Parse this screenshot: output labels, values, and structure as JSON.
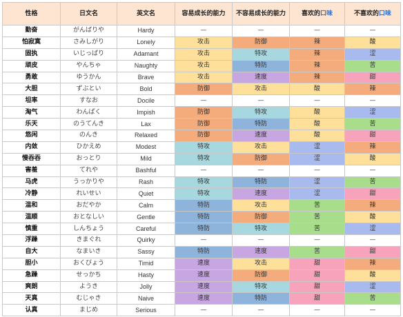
{
  "headers": {
    "nature": "性格",
    "japanese": "日文名",
    "english": "英文名",
    "easy_stat": "容易成长的能力",
    "hard_stat": "不容易成长的能力",
    "liked_flavor_prefix": "喜欢的",
    "liked_flavor_highlight": "口味",
    "disliked_flavor_prefix": "不喜欢的",
    "disliked_flavor_highlight": "口味"
  },
  "colors": {
    "header_bg": "#fde5d2",
    "attack": "#ffe09a",
    "defense": "#f4ac7c",
    "sp_attack": "#a7d8df",
    "sp_defense": "#8fb4dc",
    "speed": "#c8a6e2",
    "spicy": "#f4ac7c",
    "dry": "#a9bbee",
    "sweet": "#f6a3bb",
    "bitter": "#a8dd8c",
    "sour": "#ffe09a",
    "neutral": "#ffffff",
    "highlight_text": "#2d6fd1"
  },
  "rows": [
    {
      "nature": "勤奋",
      "japanese": "がんばりや",
      "english": "Hardy",
      "easy": "—",
      "hard": "—",
      "like": "—",
      "dislike": "—"
    },
    {
      "nature": "怕寂寞",
      "japanese": "さみしがり",
      "english": "Lonely",
      "easy": "攻击",
      "hard": "防御",
      "like": "辣",
      "dislike": "酸"
    },
    {
      "nature": "固执",
      "japanese": "いじっぱり",
      "english": "Adamant",
      "easy": "攻击",
      "hard": "特攻",
      "like": "辣",
      "dislike": "涩"
    },
    {
      "nature": "顽皮",
      "japanese": "やんちゃ",
      "english": "Naughty",
      "easy": "攻击",
      "hard": "特防",
      "like": "辣",
      "dislike": "苦"
    },
    {
      "nature": "勇敢",
      "japanese": "ゆうかん",
      "english": "Brave",
      "easy": "攻击",
      "hard": "速度",
      "like": "辣",
      "dislike": "甜"
    },
    {
      "nature": "大胆",
      "japanese": "ずぶとい",
      "english": "Bold",
      "easy": "防御",
      "hard": "攻击",
      "like": "酸",
      "dislike": "辣"
    },
    {
      "nature": "坦率",
      "japanese": "すなお",
      "english": "Docile",
      "easy": "—",
      "hard": "—",
      "like": "—",
      "dislike": "—"
    },
    {
      "nature": "淘气",
      "japanese": "わんぱく",
      "english": "Impish",
      "easy": "防御",
      "hard": "特攻",
      "like": "酸",
      "dislike": "涩"
    },
    {
      "nature": "乐天",
      "japanese": "のうてんき",
      "english": "Lax",
      "easy": "防御",
      "hard": "特防",
      "like": "酸",
      "dislike": "苦"
    },
    {
      "nature": "悠闲",
      "japanese": "のんき",
      "english": "Relaxed",
      "easy": "防御",
      "hard": "速度",
      "like": "酸",
      "dislike": "甜"
    },
    {
      "nature": "内敛",
      "japanese": "ひかえめ",
      "english": "Modest",
      "easy": "特攻",
      "hard": "攻击",
      "like": "涩",
      "dislike": "辣"
    },
    {
      "nature": "慢吞吞",
      "japanese": "おっとり",
      "english": "Mild",
      "easy": "特攻",
      "hard": "防御",
      "like": "涩",
      "dislike": "酸"
    },
    {
      "nature": "害羞",
      "japanese": "てれや",
      "english": "Bashful",
      "easy": "—",
      "hard": "—",
      "like": "—",
      "dislike": "—"
    },
    {
      "nature": "马虎",
      "japanese": "うっかりや",
      "english": "Rash",
      "easy": "特攻",
      "hard": "特防",
      "like": "涩",
      "dislike": "苦"
    },
    {
      "nature": "冷静",
      "japanese": "れいせい",
      "english": "Quiet",
      "easy": "特攻",
      "hard": "速度",
      "like": "涩",
      "dislike": "甜"
    },
    {
      "nature": "温和",
      "japanese": "おだやか",
      "english": "Calm",
      "easy": "特防",
      "hard": "攻击",
      "like": "苦",
      "dislike": "辣"
    },
    {
      "nature": "温顺",
      "japanese": "おとなしい",
      "english": "Gentle",
      "easy": "特防",
      "hard": "防御",
      "like": "苦",
      "dislike": "酸"
    },
    {
      "nature": "慎重",
      "japanese": "しんちょう",
      "english": "Careful",
      "easy": "特防",
      "hard": "特攻",
      "like": "苦",
      "dislike": "涩"
    },
    {
      "nature": "浮躁",
      "japanese": "きまぐれ",
      "english": "Quirky",
      "easy": "—",
      "hard": "—",
      "like": "—",
      "dislike": "—"
    },
    {
      "nature": "自大",
      "japanese": "なまいき",
      "english": "Sassy",
      "easy": "特防",
      "hard": "速度",
      "like": "苦",
      "dislike": "甜"
    },
    {
      "nature": "胆小",
      "japanese": "おくびょう",
      "english": "Timid",
      "easy": "速度",
      "hard": "攻击",
      "like": "甜",
      "dislike": "辣"
    },
    {
      "nature": "急躁",
      "japanese": "せっかち",
      "english": "Hasty",
      "easy": "速度",
      "hard": "防御",
      "like": "甜",
      "dislike": "酸"
    },
    {
      "nature": "爽朗",
      "japanese": "ようき",
      "english": "Jolly",
      "easy": "速度",
      "hard": "特攻",
      "like": "甜",
      "dislike": "涩"
    },
    {
      "nature": "天真",
      "japanese": "むじゃき",
      "english": "Naive",
      "easy": "速度",
      "hard": "特防",
      "like": "甜",
      "dislike": "苦"
    },
    {
      "nature": "认真",
      "japanese": "まじめ",
      "english": "Serious",
      "easy": "—",
      "hard": "—",
      "like": "—",
      "dislike": "—"
    }
  ]
}
